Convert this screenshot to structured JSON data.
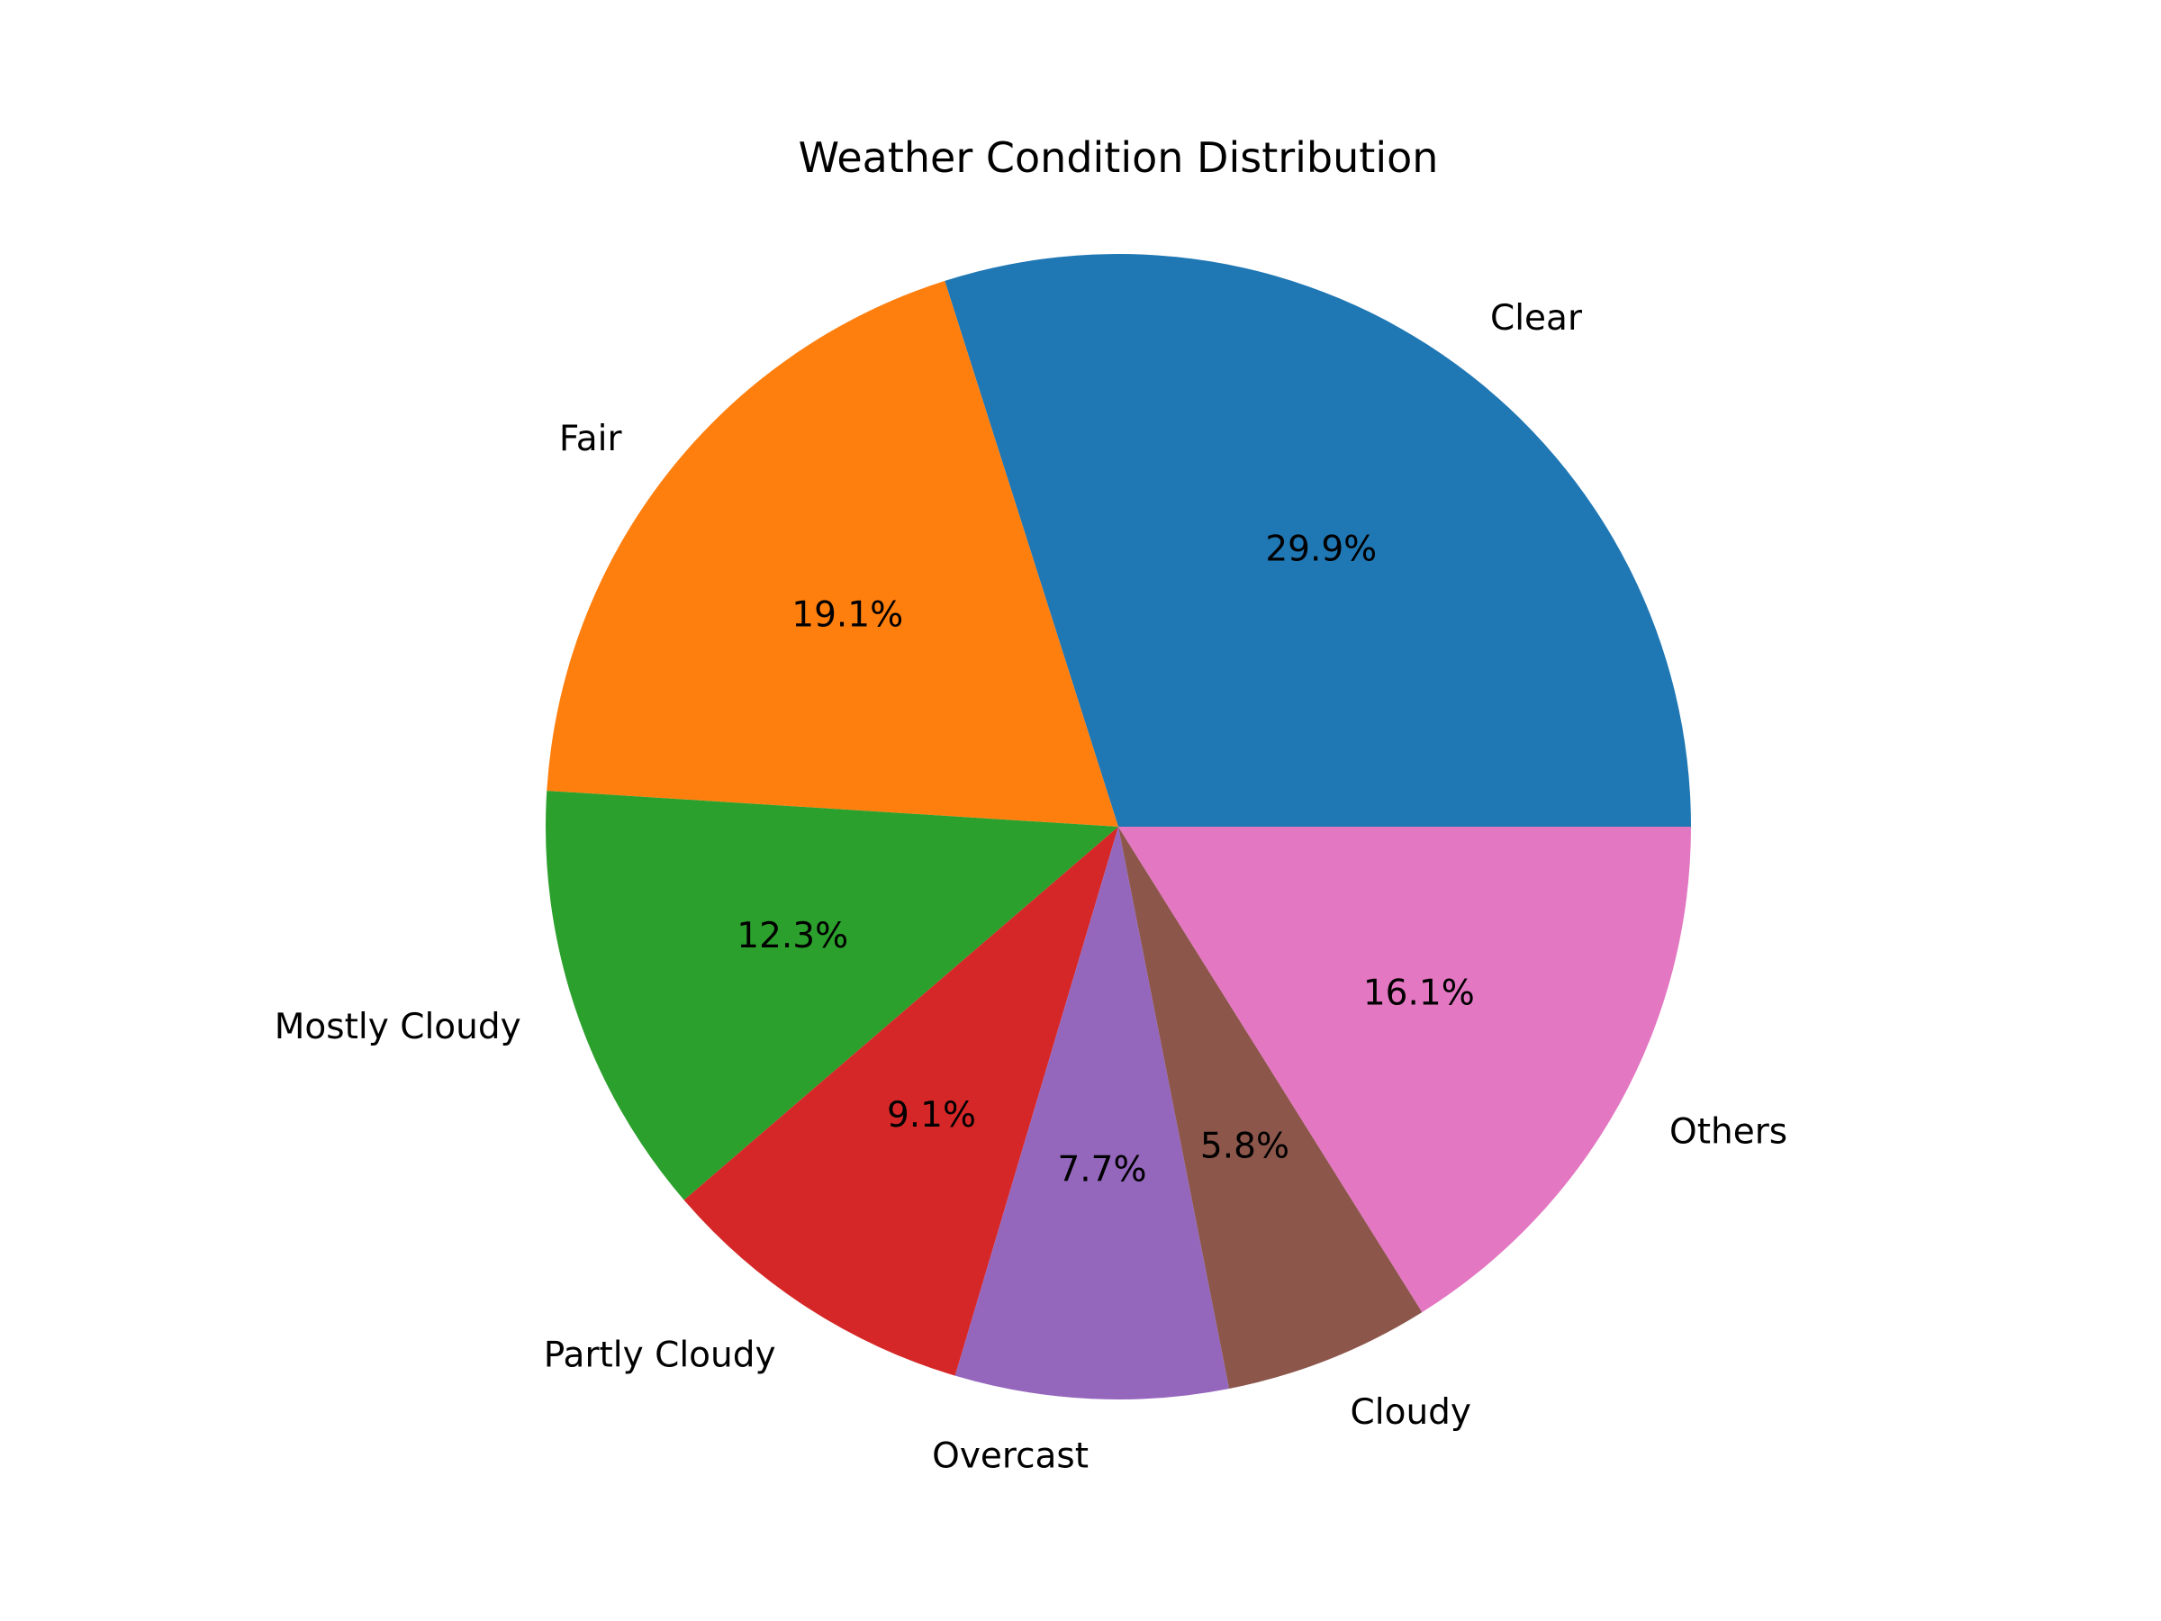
{
  "chart_data": {
    "type": "pie",
    "title": "Weather Condition Distribution",
    "start_angle_deg": 0,
    "direction": "counterclockwise",
    "slices": [
      {
        "label": "Clear",
        "value": 29.9,
        "pct_text": "29.9%",
        "color": "#1f77b4"
      },
      {
        "label": "Fair",
        "value": 19.1,
        "pct_text": "19.1%",
        "color": "#ff7f0e"
      },
      {
        "label": "Mostly Cloudy",
        "value": 12.3,
        "pct_text": "12.3%",
        "color": "#2ca02c"
      },
      {
        "label": "Partly Cloudy",
        "value": 9.1,
        "pct_text": "9.1%",
        "color": "#d62728"
      },
      {
        "label": "Overcast",
        "value": 7.7,
        "pct_text": "7.7%",
        "color": "#9467bd"
      },
      {
        "label": "Cloudy",
        "value": 5.8,
        "pct_text": "5.8%",
        "color": "#8c564b"
      },
      {
        "label": "Others",
        "value": 16.1,
        "pct_text": "16.1%",
        "color": "#e377c2"
      }
    ]
  }
}
